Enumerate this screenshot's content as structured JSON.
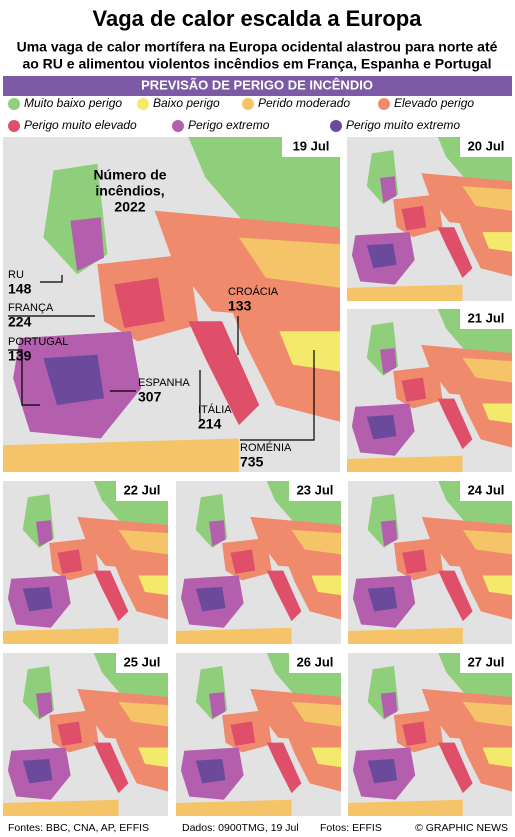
{
  "header": {
    "title": "Vaga de calor escalda a Europa",
    "subtitle": [
      "Uma vaga de calor mortífera na Europa ocidental alastrou para norte até",
      "ao RU e alimentou violentos incêndios em França, Espanha e Portugal"
    ]
  },
  "section": "PREVISÃO DE PERIGO DE INCÊNDIO",
  "legend": [
    {
      "label": "Muito baixo perigo",
      "color": "#8fcf7c"
    },
    {
      "label": "Baixo perigo",
      "color": "#f3ea6b"
    },
    {
      "label": "Perido moderado",
      "color": "#f5c468"
    },
    {
      "label": "Elevado perigo",
      "color": "#ef8a6c"
    },
    {
      "label": "Perigo muito elevado",
      "color": "#df4f69"
    },
    {
      "label": "Perigo extremo",
      "color": "#b45eae"
    },
    {
      "label": "Perigo muito extremo",
      "color": "#6b4a9c"
    }
  ],
  "maps": [
    {
      "date": "19 Jul"
    },
    {
      "date": "20 Jul"
    },
    {
      "date": "21 Jul"
    },
    {
      "date": "22 Jul"
    },
    {
      "date": "23 Jul"
    },
    {
      "date": "24 Jul"
    },
    {
      "date": "25 Jul"
    },
    {
      "date": "26 Jul"
    },
    {
      "date": "27 Jul"
    }
  ],
  "fires": {
    "title": [
      "Número de",
      "incêndios,",
      "2022"
    ],
    "countries": [
      {
        "name": "RU",
        "value": 148
      },
      {
        "name": "FRANÇA",
        "value": 224
      },
      {
        "name": "PORTUGAL",
        "value": 139
      },
      {
        "name": "ESPANHA",
        "value": 307
      },
      {
        "name": "ITÁLIA",
        "value": 214
      },
      {
        "name": "ROMÉNIA",
        "value": 735
      },
      {
        "name": "CROÁCIA",
        "value": 133
      }
    ]
  },
  "footer": {
    "sources": "Fontes: BBC, CNA, AP, EFFIS",
    "data": "Dados: 0900TMG, 19 Jul",
    "photos": "Fotos: EFFIS",
    "credit": "© GRAPHIC NEWS"
  }
}
